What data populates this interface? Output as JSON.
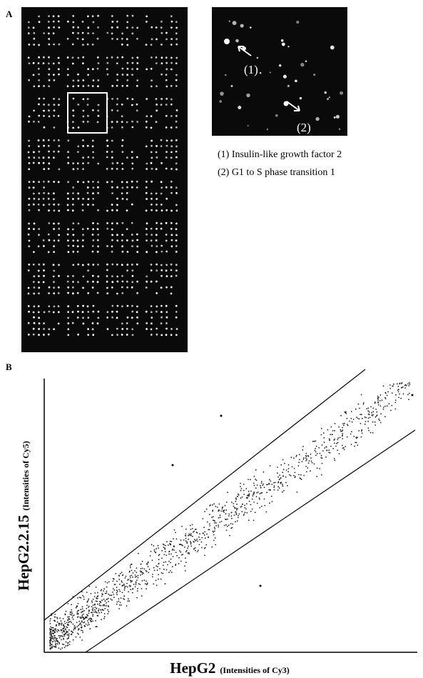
{
  "panel_a": {
    "label": "A",
    "inset_labels": [
      "(1)",
      "(2)"
    ],
    "legend": [
      "(1) Insulin-like growth factor 2",
      "(2) G1 to S phase transition 1"
    ]
  },
  "panel_b": {
    "label": "B",
    "y_axis": {
      "title": "HepG2.2.15",
      "subtitle": "(Intensities of Cy5)"
    },
    "x_axis": {
      "title": "HepG2",
      "subtitle": "(Intensities of Cy3)"
    }
  }
}
